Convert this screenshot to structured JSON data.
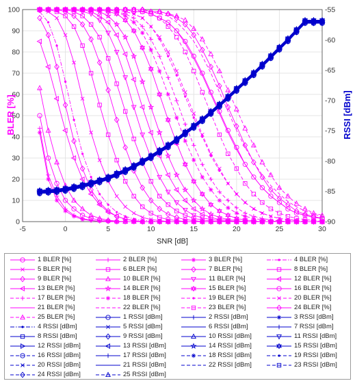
{
  "chart_data": {
    "type": "line",
    "xlabel": "SNR [dB]",
    "ylabel_left": "BLER [%]",
    "ylabel_right": "RSSI [dBm]",
    "xlim": [
      -5,
      30
    ],
    "ylim_left": [
      0,
      100
    ],
    "ylim_right": [
      -90,
      -55
    ],
    "xticks": [
      -5,
      0,
      5,
      10,
      15,
      20,
      25,
      30
    ],
    "yticks_left": [
      0,
      10,
      20,
      30,
      40,
      50,
      60,
      70,
      80,
      90,
      100
    ],
    "yticks_right": [
      -90,
      -85,
      -80,
      -75,
      -70,
      -65,
      -60,
      -55
    ],
    "grid": true,
    "colors": {
      "bler": "#ff00ff",
      "rssi": "#0000cc"
    },
    "x": [
      -3,
      -2,
      -1,
      0,
      1,
      2,
      3,
      4,
      5,
      6,
      7,
      8,
      9,
      10,
      11,
      12,
      13,
      14,
      15,
      16,
      17,
      18,
      19,
      20,
      21,
      22,
      23,
      24,
      25,
      26,
      27,
      28,
      29,
      30
    ],
    "bler_series": [
      {
        "name": "1 BLER [%]",
        "marker": "circle",
        "style": "solid",
        "values": [
          50,
          30,
          18,
          10,
          6,
          3,
          1.5,
          0.8,
          0.3,
          0,
          0,
          0,
          0,
          0,
          0,
          0,
          0,
          0,
          0,
          0,
          0,
          0,
          0,
          0,
          0,
          0,
          0,
          0,
          0,
          0,
          0,
          0,
          0,
          0
        ]
      },
      {
        "name": "2 BLER [%]",
        "marker": "plus",
        "style": "solid",
        "values": [
          44,
          22,
          12,
          6,
          3,
          1.5,
          0.6,
          0.2,
          0,
          0,
          0,
          0,
          0,
          0,
          0,
          0,
          0,
          0,
          0,
          0,
          0,
          0,
          0,
          0,
          0,
          0,
          0,
          0,
          0,
          0,
          0,
          0,
          0,
          0
        ]
      },
      {
        "name": "3 BLER [%]",
        "marker": "asterisk",
        "style": "solid",
        "values": [
          42,
          20,
          10,
          5,
          2.5,
          1,
          0.5,
          0.2,
          0,
          0,
          0,
          0,
          0,
          0,
          0,
          0,
          0,
          0,
          0,
          0,
          0,
          0,
          0,
          0,
          0,
          0,
          0,
          0,
          0,
          0,
          0,
          0,
          0,
          0
        ]
      },
      {
        "name": "4 BLER [%]",
        "marker": "dot",
        "style": "dashdot",
        "values": [
          99,
          94,
          83,
          66,
          48,
          32,
          21,
          13,
          8,
          4.5,
          2.5,
          1.2,
          0.6,
          0.3,
          0,
          0,
          0,
          0,
          0,
          0,
          0,
          0,
          0,
          0,
          0,
          0,
          0,
          0,
          0,
          0,
          0,
          0,
          0,
          0
        ]
      },
      {
        "name": "5 BLER [%]",
        "marker": "cross",
        "style": "solid",
        "values": [
          100,
          99,
          96,
          88,
          75,
          58,
          42,
          29,
          19,
          12,
          7,
          4,
          2,
          1,
          0.5,
          0,
          0,
          0,
          0,
          0,
          0,
          0,
          0,
          0,
          0,
          0,
          0,
          0,
          0,
          0,
          0,
          0,
          0,
          0
        ]
      },
      {
        "name": "6 BLER [%]",
        "marker": "square",
        "style": "solid",
        "values": [
          100,
          100,
          99,
          97,
          92,
          83,
          70,
          55,
          41,
          29,
          19,
          12,
          7,
          4,
          2,
          1,
          0.5,
          0,
          0,
          0,
          0,
          0,
          0,
          0,
          0,
          0,
          0,
          0,
          0,
          0,
          0,
          0,
          0,
          0
        ]
      },
      {
        "name": "7 BLER [%]",
        "marker": "diamond",
        "style": "solid",
        "values": [
          100,
          100,
          100,
          99,
          97,
          93,
          86,
          75,
          62,
          48,
          35,
          24,
          16,
          10,
          6,
          3.5,
          2,
          1,
          0.5,
          0,
          0,
          0,
          0,
          0,
          0,
          0,
          0,
          0,
          0,
          0,
          0,
          0,
          0,
          0
        ]
      },
      {
        "name": "8 BLER [%]",
        "marker": "square",
        "style": "solid",
        "values": [
          100,
          100,
          100,
          100,
          99,
          97,
          93,
          87,
          77,
          65,
          52,
          39,
          28,
          19,
          12,
          8,
          5,
          3,
          1.5,
          0.8,
          0.3,
          0,
          0,
          0,
          0,
          0,
          0,
          0,
          0,
          0,
          0,
          0,
          0,
          0
        ]
      },
      {
        "name": "9 BLER [%]",
        "marker": "diamond",
        "style": "solid",
        "values": [
          96,
          88,
          73,
          55,
          38,
          25,
          15,
          9,
          5,
          2.5,
          1.2,
          0.5,
          0,
          0,
          0,
          0,
          0,
          0,
          0,
          0,
          0,
          0,
          0,
          0,
          0,
          0,
          0,
          0,
          0,
          0,
          0,
          0,
          0,
          0
        ]
      },
      {
        "name": "10 BLER [%]",
        "marker": "triangle-up",
        "style": "solid",
        "values": [
          63,
          43,
          28,
          17,
          10,
          6,
          3,
          1.5,
          0.7,
          0.2,
          0,
          0,
          0,
          0,
          0,
          0,
          0,
          0,
          0,
          0,
          0,
          0,
          0,
          0,
          0,
          0,
          0,
          0,
          0,
          0,
          0,
          0,
          0,
          0
        ]
      },
      {
        "name": "11 BLER [%]",
        "marker": "triangle-down",
        "style": "solid",
        "values": [
          100,
          100,
          100,
          100,
          100,
          99,
          98,
          95,
          89,
          80,
          68,
          54,
          41,
          30,
          21,
          14,
          9,
          5.5,
          3,
          1.8,
          1,
          0.5,
          0,
          0,
          0,
          0,
          0,
          0,
          0,
          0,
          0,
          0,
          0,
          0
        ]
      },
      {
        "name": "12 BLER [%]",
        "marker": "triangle-left",
        "style": "solid",
        "values": [
          100,
          100,
          100,
          100,
          100,
          100,
          99,
          97,
          94,
          88,
          79,
          67,
          54,
          42,
          31,
          22,
          15,
          10,
          6,
          3.5,
          2,
          1,
          0.5,
          0,
          0,
          0,
          0,
          0,
          0,
          0,
          0,
          0,
          0,
          0
        ]
      },
      {
        "name": "13 BLER [%]",
        "marker": "triangle-left",
        "style": "solid",
        "values": [
          85,
          73,
          58,
          43,
          30,
          20,
          13,
          8,
          4.5,
          2.5,
          1.2,
          0.5,
          0,
          0,
          0,
          0,
          0,
          0,
          0,
          0,
          0,
          0,
          0,
          0,
          0,
          0,
          0,
          0,
          0,
          0,
          0,
          0,
          0,
          0
        ]
      },
      {
        "name": "14 BLER [%]",
        "marker": "star",
        "style": "solid",
        "values": [
          100,
          100,
          100,
          100,
          100,
          100,
          100,
          99,
          97,
          93,
          87,
          78,
          66,
          54,
          42,
          31,
          22,
          15,
          10,
          6,
          3.5,
          2,
          1,
          0.5,
          0,
          0,
          0,
          0,
          0,
          0,
          0,
          0,
          0,
          0
        ]
      },
      {
        "name": "15 BLER [%]",
        "marker": "hexagram",
        "style": "solid",
        "values": [
          100,
          100,
          100,
          100,
          100,
          100,
          100,
          100,
          99,
          98,
          95,
          90,
          82,
          72,
          60,
          48,
          37,
          27,
          19,
          13,
          8,
          5,
          3,
          1.5,
          0.8,
          0.3,
          0,
          0,
          0,
          0,
          0,
          0,
          0,
          0
        ]
      },
      {
        "name": "16 BLER [%]",
        "marker": "circle",
        "style": "solid",
        "values": [
          100,
          100,
          100,
          100,
          100,
          100,
          100,
          100,
          100,
          100,
          100,
          99,
          99,
          98,
          96,
          94,
          90,
          85,
          78,
          70,
          61,
          52,
          43,
          35,
          27,
          21,
          16,
          12,
          9,
          6,
          4,
          3,
          2,
          1.5
        ]
      },
      {
        "name": "17 BLER [%]",
        "marker": "plus",
        "style": "dashed",
        "values": [
          100,
          100,
          100,
          100,
          100,
          100,
          100,
          100,
          100,
          99,
          98,
          96,
          92,
          86,
          78,
          68,
          57,
          46,
          36,
          27,
          20,
          14,
          10,
          6.5,
          4,
          2.5,
          1.5,
          0.8,
          0.3,
          0,
          0,
          0,
          0,
          0
        ]
      },
      {
        "name": "18 BLER [%]",
        "marker": "asterisk",
        "style": "dashed",
        "values": [
          100,
          100,
          100,
          100,
          100,
          100,
          100,
          100,
          100,
          99,
          97,
          94,
          89,
          81,
          71,
          60,
          49,
          38,
          29,
          21,
          15,
          10,
          6.5,
          4,
          2.5,
          1.5,
          0.8,
          0.3,
          0,
          0,
          0,
          0,
          0,
          0
        ]
      },
      {
        "name": "19 BLER [%]",
        "marker": "dot",
        "style": "dashed",
        "values": [
          100,
          100,
          100,
          100,
          100,
          100,
          100,
          100,
          100,
          100,
          99,
          98,
          96,
          92,
          86,
          78,
          69,
          59,
          49,
          40,
          31,
          24,
          18,
          13,
          9,
          6,
          4,
          2.5,
          1.5,
          1,
          0.5,
          0,
          0,
          0
        ]
      },
      {
        "name": "20 BLER [%]",
        "marker": "cross",
        "style": "dashed",
        "values": [
          100,
          100,
          100,
          100,
          100,
          100,
          100,
          100,
          100,
          100,
          99,
          98,
          96,
          92,
          87,
          80,
          71,
          61,
          51,
          41,
          32,
          25,
          18,
          13,
          9,
          6,
          4,
          2.5,
          1.5,
          1,
          0.5,
          0,
          0,
          0
        ]
      },
      {
        "name": "21 BLER [%]",
        "marker": "none",
        "style": "solid",
        "values": [
          100,
          100,
          100,
          100,
          100,
          100,
          100,
          100,
          100,
          100,
          100,
          99,
          99,
          98,
          96,
          94,
          90,
          84,
          77,
          69,
          60,
          51,
          42,
          34,
          27,
          21,
          16,
          12,
          9,
          6,
          4,
          3,
          2,
          1.5
        ]
      },
      {
        "name": "22 BLER [%]",
        "marker": "none",
        "style": "dashed",
        "values": [
          100,
          100,
          100,
          100,
          100,
          100,
          100,
          100,
          100,
          100,
          100,
          100,
          99,
          99,
          98,
          97,
          94,
          90,
          85,
          78,
          70,
          61,
          52,
          43,
          35,
          28,
          22,
          17,
          13,
          9.5,
          7,
          5,
          3.5,
          2.5
        ]
      },
      {
        "name": "23 BLER [%]",
        "marker": "square",
        "style": "dashed",
        "values": [
          100,
          100,
          100,
          100,
          100,
          100,
          100,
          100,
          100,
          100,
          100,
          100,
          99,
          98,
          96,
          92,
          87,
          80,
          71,
          61,
          51,
          41,
          32,
          25,
          18,
          13,
          9,
          6,
          4,
          2.5,
          1.5,
          1,
          0.5,
          0
        ]
      },
      {
        "name": "24 BLER [%]",
        "marker": "diamond",
        "style": "solid",
        "values": [
          100,
          100,
          100,
          100,
          100,
          100,
          100,
          100,
          100,
          100,
          100,
          100,
          100,
          99,
          99,
          98,
          96,
          93,
          88,
          81,
          73,
          64,
          54,
          45,
          36,
          28,
          21,
          15,
          11,
          8,
          5,
          3.5,
          2.5,
          1.5
        ]
      },
      {
        "name": "25 BLER [%]",
        "marker": "triangle-up",
        "style": "dashed",
        "values": [
          100,
          100,
          100,
          100,
          100,
          100,
          100,
          100,
          100,
          100,
          100,
          100,
          100,
          99,
          99,
          98,
          97,
          95,
          91,
          86,
          79,
          71,
          62,
          53,
          44,
          36,
          28,
          22,
          16,
          12,
          8.5,
          6,
          4,
          3
        ]
      }
    ],
    "rssi": {
      "names": [
        "1 RSSI [dBm]",
        "2 RSSI [dBm]",
        "3 RSSI [dBm]",
        "4 RSSI [dBm]",
        "5 RSSI [dBm]",
        "6 RSSI [dBm]",
        "7 RSSI [dBm]",
        "8 RSSI [dBm]",
        "9 RSSI [dBm]",
        "10 RSSI [dBm]",
        "11 RSSI [dBm]",
        "12 RSSI [dBm]",
        "13 RSSI [dBm]",
        "14 RSSI [dBm]",
        "15 RSSI [dBm]",
        "16 RSSI [dBm]",
        "17 RSSI [dBm]",
        "18 RSSI [dBm]",
        "19 RSSI [dBm]",
        "20 RSSI [dBm]",
        "21 RSSI [dBm]",
        "22 RSSI [dBm]",
        "23 RSSI [dBm]",
        "24 RSSI [dBm]",
        "25 RSSI [dBm]"
      ],
      "markers": [
        "circle",
        "plus",
        "asterisk",
        "dot",
        "cross",
        "none",
        "plus",
        "square",
        "diamond",
        "triangle-up",
        "triangle-down",
        "triangle-right",
        "triangle-left",
        "star",
        "hexagram",
        "circle",
        "plus",
        "asterisk",
        "dot",
        "cross",
        "none",
        "none",
        "square",
        "diamond",
        "triangle-up"
      ],
      "styles": [
        "solid",
        "solid",
        "solid",
        "dashdot",
        "solid",
        "solid",
        "solid",
        "solid",
        "solid",
        "solid",
        "solid",
        "solid",
        "solid",
        "solid",
        "solid",
        "dashed",
        "solid",
        "dashed",
        "dashed",
        "dashed",
        "solid",
        "dashed",
        "dashed",
        "dashed",
        "dashed"
      ],
      "values": [
        -85.1,
        -85.0,
        -84.9,
        -84.7,
        -84.4,
        -84.1,
        -83.7,
        -83.3,
        -82.8,
        -82.2,
        -81.6,
        -80.9,
        -80.1,
        -79.3,
        -78.4,
        -77.5,
        -76.5,
        -75.4,
        -74.3,
        -73.2,
        -72.0,
        -70.8,
        -69.5,
        -68.2,
        -66.9,
        -65.6,
        -64.2,
        -62.8,
        -61.4,
        -60.0,
        -58.5,
        -57.0,
        -57.0,
        -57.0
      ]
    }
  }
}
